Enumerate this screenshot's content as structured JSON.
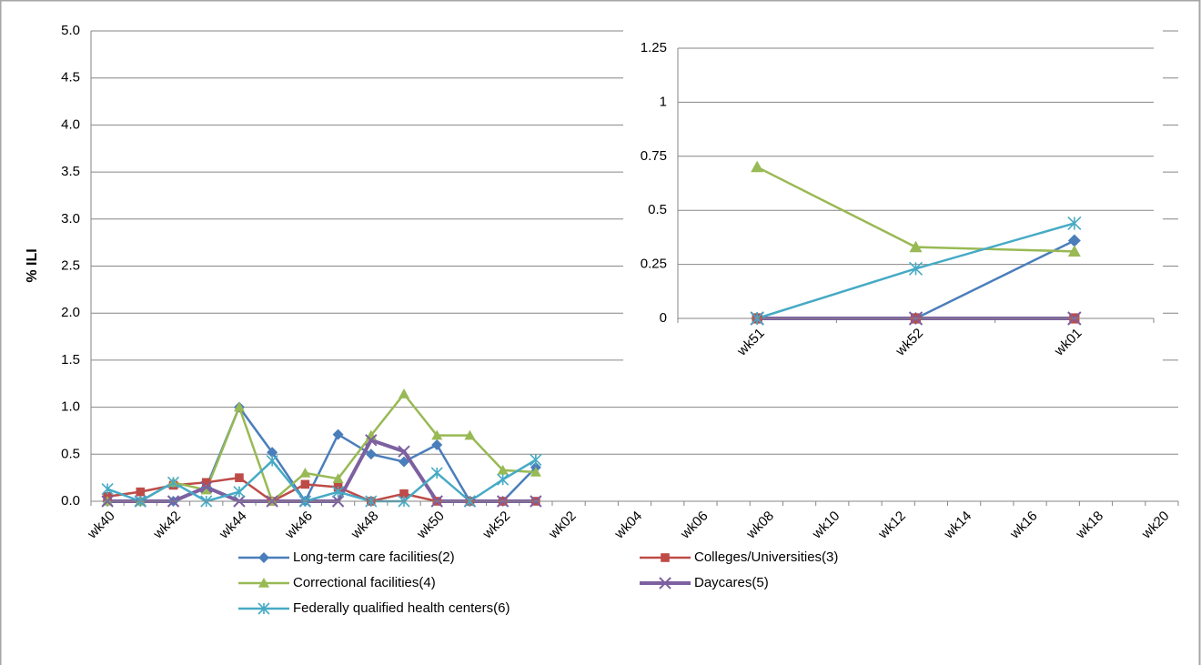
{
  "chart_data": [
    {
      "type": "line",
      "y_label": "% ILI",
      "categories": [
        "wk40",
        null,
        "wk42",
        null,
        "wk44",
        null,
        "wk46",
        null,
        "wk48",
        null,
        "wk50",
        null,
        "wk52",
        null,
        "wk02",
        null,
        "wk04",
        null,
        "wk06",
        null,
        "wk08",
        null,
        "wk10",
        null,
        "wk12",
        null,
        "wk14",
        null,
        "wk16",
        null,
        "wk18",
        null,
        "wk20"
      ],
      "ylim": [
        0,
        5
      ],
      "yticks": [
        {
          "value": 0,
          "label": "0.0"
        },
        {
          "value": 0.5,
          "label": "0.5"
        },
        {
          "value": 1,
          "label": "1.0"
        },
        {
          "value": 1.5,
          "label": "1.5"
        },
        {
          "value": 2,
          "label": "2.0"
        },
        {
          "value": 2.5,
          "label": "2.5"
        },
        {
          "value": 3,
          "label": "3.0"
        },
        {
          "value": 3.5,
          "label": "3.5"
        },
        {
          "value": 4,
          "label": "4.0"
        },
        {
          "value": 4.5,
          "label": "4.5"
        },
        {
          "value": 5,
          "label": "5.0"
        }
      ],
      "grid": true,
      "legend": "bottom",
      "series": [
        {
          "name": "Long-term care facilities(2)",
          "color": "#4a7ebb",
          "marker": "diamond",
          "values": [
            0,
            0,
            0,
            0.15,
            1.0,
            0.52,
            0,
            0.71,
            0.5,
            0.42,
            0.6,
            0,
            0,
            0.36,
            null,
            null,
            null,
            null,
            null,
            null,
            null,
            null,
            null,
            null,
            null,
            null,
            null,
            null,
            null,
            null,
            null,
            null,
            null
          ]
        },
        {
          "name": "Colleges/Universities(3)",
          "color": "#be4b48",
          "marker": "square",
          "values": [
            0.05,
            0.1,
            0.17,
            0.2,
            0.25,
            0,
            0.18,
            0.15,
            0,
            0.08,
            0,
            0,
            0,
            0,
            null,
            null,
            null,
            null,
            null,
            null,
            null,
            null,
            null,
            null,
            null,
            null,
            null,
            null,
            null,
            null,
            null,
            null,
            null
          ]
        },
        {
          "name": "Correctional facilities(4)",
          "color": "#98b954",
          "marker": "triangle",
          "values": [
            0,
            0,
            0.2,
            0.12,
            1.0,
            0,
            0.3,
            0.24,
            0.7,
            1.14,
            0.7,
            0.7,
            0.33,
            0.31,
            null,
            null,
            null,
            null,
            null,
            null,
            null,
            null,
            null,
            null,
            null,
            null,
            null,
            null,
            null,
            null,
            null,
            null,
            null
          ]
        },
        {
          "name": "Daycares(5)",
          "color": "#7d60a0",
          "marker": "x",
          "values": [
            0,
            0,
            0,
            0.15,
            0,
            0,
            0,
            0,
            0.65,
            0.53,
            0,
            0,
            0,
            0,
            null,
            null,
            null,
            null,
            null,
            null,
            null,
            null,
            null,
            null,
            null,
            null,
            null,
            null,
            null,
            null,
            null,
            null,
            null
          ]
        },
        {
          "name": "Federally qualified health centers(6)",
          "color": "#46aac5",
          "marker": "star",
          "values": [
            0.13,
            0,
            0.2,
            0,
            0.1,
            0.43,
            0,
            0.1,
            0,
            0,
            0.3,
            0,
            0.23,
            0.44,
            null,
            null,
            null,
            null,
            null,
            null,
            null,
            null,
            null,
            null,
            null,
            null,
            null,
            null,
            null,
            null,
            null,
            null,
            null
          ]
        }
      ]
    },
    {
      "type": "line",
      "categories": [
        "wk51",
        "wk52",
        "wk01"
      ],
      "ylim": [
        0,
        1.25
      ],
      "yticks": [
        0,
        0.25,
        0.5,
        0.75,
        1,
        1.25
      ],
      "grid": true,
      "series": [
        {
          "color": "#4a7ebb",
          "marker": "diamond",
          "values": [
            0,
            0,
            0.36
          ]
        },
        {
          "color": "#be4b48",
          "marker": "square",
          "values": [
            0,
            0,
            0
          ]
        },
        {
          "color": "#98b954",
          "marker": "triangle",
          "values": [
            0.7,
            0.33,
            0.31
          ]
        },
        {
          "color": "#7d60a0",
          "marker": "x",
          "values": [
            0,
            0,
            0
          ]
        },
        {
          "color": "#46aac5",
          "marker": "star",
          "values": [
            0,
            0.23,
            0.44
          ]
        }
      ]
    }
  ]
}
